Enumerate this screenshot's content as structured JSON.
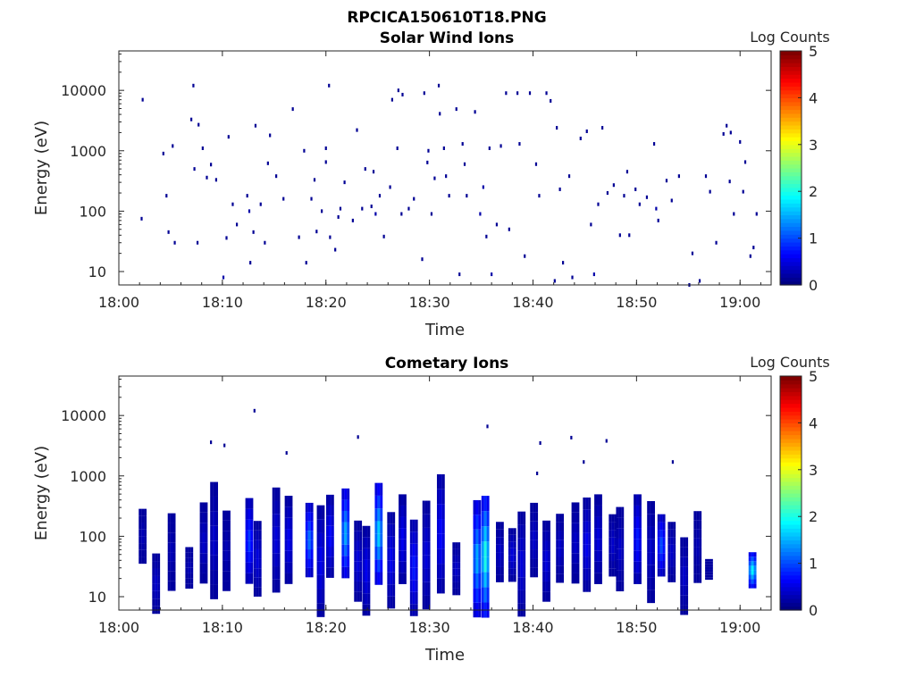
{
  "figure_title": "RPCICA150610T18.PNG",
  "chart_data": [
    {
      "type": "heatmap",
      "title": "Solar Wind Ions",
      "xlabel": "Time",
      "ylabel": "Energy (eV)",
      "x_ticks": [
        "18:00",
        "18:10",
        "18:20",
        "18:30",
        "18:40",
        "18:50",
        "19:00"
      ],
      "x_range": [
        "18:00",
        "19:03"
      ],
      "y_scale": "log",
      "y_ticks": [
        "10",
        "100",
        "1000",
        "10000"
      ],
      "y_range": [
        6,
        45000
      ],
      "colorbar": {
        "label": "Log Counts",
        "ticks": [
          "0",
          "1",
          "2",
          "3",
          "4",
          "5"
        ],
        "range": [
          0,
          5
        ],
        "colormap": "jet"
      },
      "points": [
        [
          2.3,
          7000,
          0.1
        ],
        [
          2.2,
          75,
          0.1
        ],
        [
          4.3,
          900,
          0.1
        ],
        [
          4.6,
          180,
          0.1
        ],
        [
          4.8,
          45,
          0.1
        ],
        [
          5.2,
          1200,
          0.1
        ],
        [
          5.4,
          30,
          0.1
        ],
        [
          7.2,
          12000,
          0.1
        ],
        [
          7.0,
          3300,
          0.1
        ],
        [
          7.3,
          500,
          0.1
        ],
        [
          7.6,
          30,
          0.1
        ],
        [
          7.7,
          2700,
          0.1
        ],
        [
          8.1,
          1100,
          0.1
        ],
        [
          8.5,
          360,
          0.1
        ],
        [
          8.9,
          590,
          0.1
        ],
        [
          9.4,
          330,
          0.1
        ],
        [
          10.1,
          8,
          0.2
        ],
        [
          10.4,
          36,
          0.1
        ],
        [
          10.6,
          1700,
          0.1
        ],
        [
          11.0,
          130,
          0.1
        ],
        [
          11.4,
          60,
          0.1
        ],
        [
          12.4,
          180,
          0.1
        ],
        [
          12.6,
          100,
          0.2
        ],
        [
          12.7,
          14,
          0.1
        ],
        [
          13.0,
          45,
          0.1
        ],
        [
          13.2,
          2600,
          0.1
        ],
        [
          13.7,
          130,
          0.1
        ],
        [
          14.1,
          30,
          0.1
        ],
        [
          14.4,
          620,
          0.1
        ],
        [
          14.6,
          1800,
          0.1
        ],
        [
          15.2,
          380,
          0.1
        ],
        [
          15.9,
          160,
          0.1
        ],
        [
          16.8,
          4900,
          0.1
        ],
        [
          17.4,
          37,
          0.1
        ],
        [
          17.9,
          1000,
          0.1
        ],
        [
          18.1,
          14,
          0.1
        ],
        [
          18.6,
          160,
          0.1
        ],
        [
          18.9,
          330,
          0.1
        ],
        [
          19.1,
          46,
          0.1
        ],
        [
          19.6,
          100,
          0.1
        ],
        [
          20.0,
          1100,
          0.1
        ],
        [
          20.0,
          650,
          0.1
        ],
        [
          20.3,
          12000,
          0.1
        ],
        [
          20.4,
          37,
          0.1
        ],
        [
          20.9,
          23,
          0.1
        ],
        [
          21.2,
          80,
          0.1
        ],
        [
          21.4,
          110,
          0.1
        ],
        [
          21.8,
          300,
          0.1
        ],
        [
          22.6,
          70,
          0.1
        ],
        [
          23.0,
          2200,
          0.1
        ],
        [
          23.5,
          110,
          0.1
        ],
        [
          23.8,
          500,
          0.1
        ],
        [
          24.4,
          120,
          0.1
        ],
        [
          24.6,
          450,
          0.1
        ],
        [
          24.8,
          90,
          0.2
        ],
        [
          25.2,
          180,
          0.1
        ],
        [
          25.6,
          38,
          0.1
        ],
        [
          26.2,
          250,
          0.1
        ],
        [
          26.4,
          7000,
          0.1
        ],
        [
          26.9,
          1100,
          0.1
        ],
        [
          27.0,
          10000,
          0.1
        ],
        [
          27.4,
          8500,
          0.1
        ],
        [
          27.3,
          90,
          0.1
        ],
        [
          28.0,
          110,
          0.1
        ],
        [
          28.5,
          160,
          0.1
        ],
        [
          29.3,
          16,
          0.1
        ],
        [
          29.5,
          9000,
          0.1
        ],
        [
          29.8,
          640,
          0.1
        ],
        [
          29.9,
          1000,
          0.1
        ],
        [
          30.2,
          90,
          0.1
        ],
        [
          30.5,
          350,
          0.1
        ],
        [
          30.9,
          12000,
          0.1
        ],
        [
          31.0,
          4100,
          0.1
        ],
        [
          31.4,
          1100,
          0.1
        ],
        [
          31.6,
          380,
          0.1
        ],
        [
          31.9,
          180,
          0.1
        ],
        [
          32.6,
          4900,
          0.1
        ],
        [
          32.9,
          9,
          0.1
        ],
        [
          33.2,
          1300,
          0.1
        ],
        [
          33.4,
          600,
          0.1
        ],
        [
          33.6,
          180,
          0.1
        ],
        [
          34.4,
          4400,
          0.1
        ],
        [
          34.9,
          90,
          0.2
        ],
        [
          35.2,
          250,
          0.2
        ],
        [
          35.5,
          38,
          0.1
        ],
        [
          35.8,
          1100,
          0.1
        ],
        [
          36.0,
          9,
          0.2
        ],
        [
          36.5,
          60,
          0.1
        ],
        [
          36.9,
          1200,
          0.1
        ],
        [
          37.4,
          9000,
          0.1
        ],
        [
          37.7,
          50,
          0.1
        ],
        [
          38.5,
          9000,
          0.1
        ],
        [
          38.7,
          1300,
          0.1
        ],
        [
          39.2,
          18,
          0.1
        ],
        [
          39.7,
          9000,
          0.1
        ],
        [
          40.3,
          600,
          0.1
        ],
        [
          40.6,
          180,
          0.1
        ],
        [
          41.3,
          9000,
          0.1
        ],
        [
          41.7,
          6700,
          0.1
        ],
        [
          42.1,
          7,
          0.1
        ],
        [
          42.3,
          2400,
          0.1
        ],
        [
          42.6,
          230,
          0.1
        ],
        [
          42.9,
          14,
          0.1
        ],
        [
          43.5,
          380,
          0.1
        ],
        [
          43.8,
          8,
          0.1
        ],
        [
          44.6,
          1600,
          0.1
        ],
        [
          45.2,
          2100,
          0.1
        ],
        [
          45.6,
          60,
          0.1
        ],
        [
          45.9,
          9,
          0.2
        ],
        [
          46.3,
          130,
          0.1
        ],
        [
          46.7,
          2400,
          0.1
        ],
        [
          47.2,
          200,
          0.1
        ],
        [
          47.8,
          270,
          0.1
        ],
        [
          48.4,
          40,
          0.1
        ],
        [
          48.8,
          180,
          0.1
        ],
        [
          49.1,
          450,
          0.1
        ],
        [
          49.3,
          40,
          0.1
        ],
        [
          49.9,
          230,
          0.1
        ],
        [
          50.3,
          130,
          0.1
        ],
        [
          51.0,
          170,
          0.1
        ],
        [
          51.7,
          1300,
          0.1
        ],
        [
          51.9,
          110,
          0.2
        ],
        [
          52.1,
          70,
          0.1
        ],
        [
          52.9,
          320,
          0.1
        ],
        [
          53.4,
          150,
          0.1
        ],
        [
          54.1,
          380,
          0.1
        ],
        [
          55.1,
          6,
          0.1
        ],
        [
          55.4,
          20,
          0.1
        ],
        [
          56.1,
          7,
          0.1
        ],
        [
          56.7,
          380,
          0.1
        ],
        [
          57.1,
          210,
          0.1
        ],
        [
          57.7,
          30,
          0.1
        ],
        [
          58.4,
          1900,
          0.1
        ],
        [
          58.7,
          2600,
          0.1
        ],
        [
          59.0,
          310,
          0.1
        ],
        [
          59.1,
          2000,
          0.1
        ],
        [
          59.4,
          90,
          0.1
        ],
        [
          60.0,
          1400,
          0.1
        ],
        [
          60.3,
          210,
          0.1
        ],
        [
          60.5,
          650,
          0.1
        ],
        [
          61.0,
          18,
          0.1
        ],
        [
          61.3,
          25,
          0.1
        ],
        [
          61.6,
          90,
          0.1
        ]
      ]
    },
    {
      "type": "heatmap",
      "title": "Cometary Ions",
      "xlabel": "Time",
      "ylabel": "Energy (eV)",
      "x_ticks": [
        "18:00",
        "18:10",
        "18:20",
        "18:30",
        "18:40",
        "18:50",
        "19:00"
      ],
      "x_range": [
        "18:00",
        "19:03"
      ],
      "y_scale": "log",
      "y_ticks": [
        "10",
        "100",
        "1000",
        "10000"
      ],
      "y_range": [
        6,
        45000
      ],
      "colorbar": {
        "label": "Log Counts",
        "ticks": [
          "0",
          "1",
          "2",
          "3",
          "4",
          "5"
        ],
        "range": [
          0,
          5
        ],
        "colormap": "jet"
      },
      "bursts": [
        [
          2.3,
          40,
          250,
          0.3
        ],
        [
          3.6,
          6,
          45,
          0.4
        ],
        [
          5.1,
          15,
          200,
          0.3
        ],
        [
          6.8,
          15,
          60,
          0.3
        ],
        [
          8.2,
          20,
          300,
          0.4
        ],
        [
          9.2,
          12,
          600,
          0.4
        ],
        [
          10.4,
          15,
          220,
          0.3
        ],
        [
          12.6,
          20,
          350,
          1.0
        ],
        [
          13.4,
          12,
          150,
          0.5
        ],
        [
          15.2,
          15,
          500,
          0.5
        ],
        [
          16.4,
          20,
          380,
          0.6
        ],
        [
          18.4,
          25,
          300,
          1.3
        ],
        [
          19.5,
          6,
          250,
          0.6
        ],
        [
          20.4,
          25,
          400,
          0.7
        ],
        [
          21.9,
          25,
          500,
          1.6
        ],
        [
          23.1,
          10,
          150,
          0.5
        ],
        [
          23.9,
          6,
          120,
          0.6
        ],
        [
          25.1,
          20,
          600,
          1.8
        ],
        [
          26.3,
          8,
          200,
          0.6
        ],
        [
          27.4,
          20,
          400,
          0.6
        ],
        [
          28.5,
          6,
          150,
          0.8
        ],
        [
          29.7,
          8,
          300,
          0.5
        ],
        [
          31.1,
          15,
          800,
          0.7
        ],
        [
          32.6,
          12,
          70,
          0.4
        ],
        [
          34.6,
          6,
          300,
          1.6
        ],
        [
          35.4,
          6,
          350,
          2.2
        ],
        [
          36.8,
          20,
          150,
          0.4
        ],
        [
          38.0,
          20,
          120,
          0.5
        ],
        [
          38.9,
          6,
          200,
          0.5
        ],
        [
          40.1,
          25,
          300,
          0.4
        ],
        [
          41.3,
          10,
          150,
          0.5
        ],
        [
          42.6,
          20,
          200,
          0.4
        ],
        [
          44.1,
          20,
          300,
          0.4
        ],
        [
          45.2,
          15,
          350,
          0.6
        ],
        [
          46.3,
          20,
          400,
          0.5
        ],
        [
          47.7,
          25,
          200,
          0.4
        ],
        [
          48.4,
          15,
          250,
          0.4
        ],
        [
          50.1,
          20,
          400,
          0.8
        ],
        [
          51.4,
          10,
          300,
          0.4
        ],
        [
          52.4,
          25,
          200,
          1.1
        ],
        [
          53.4,
          20,
          150,
          0.4
        ],
        [
          54.6,
          6,
          80,
          0.4
        ],
        [
          55.9,
          20,
          220,
          0.3
        ],
        [
          57.0,
          20,
          40,
          0.2
        ],
        [
          61.2,
          15,
          50,
          2.0
        ]
      ],
      "scattered": [
        [
          8.9,
          3600,
          0.1
        ],
        [
          10.2,
          3200,
          0.1
        ],
        [
          13.1,
          12000,
          0.1
        ],
        [
          16.2,
          2400,
          0.1
        ],
        [
          23.1,
          4400,
          0.1
        ],
        [
          35.6,
          6600,
          0.1
        ],
        [
          40.4,
          1100,
          0.1
        ],
        [
          40.7,
          3500,
          0.1
        ],
        [
          43.7,
          4300,
          0.1
        ],
        [
          44.9,
          1700,
          0.1
        ],
        [
          47.1,
          3800,
          0.1
        ],
        [
          53.5,
          1700,
          0.1
        ]
      ]
    }
  ]
}
